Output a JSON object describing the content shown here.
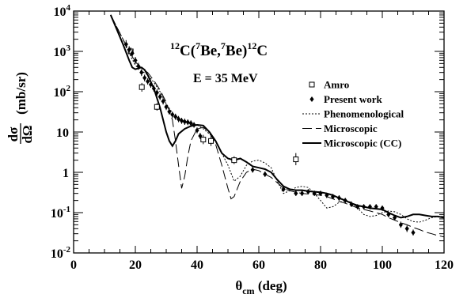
{
  "chart_data": {
    "type": "scatter",
    "title": "",
    "annotations": {
      "reaction": {
        "pre": "12",
        "a": "C(",
        "pre2": "7",
        "b": "Be,",
        "pre3": "7",
        "c": "Be)",
        "pre4": "12",
        "d": "C"
      },
      "energy": "E = 35 MeV"
    },
    "xlabel": {
      "main": "θ",
      "sub": "cm",
      "rest": " (deg)"
    },
    "ylabel": {
      "num": "dσ",
      "den": "dΩ",
      "unit": "(mb/sr)"
    },
    "xlim": [
      0,
      120
    ],
    "ylim": [
      0.01,
      10000
    ],
    "yscale": "log",
    "x_ticks": [
      0,
      20,
      40,
      60,
      80,
      100,
      120
    ],
    "x_tick_labels": [
      "0",
      "20",
      "40",
      "60",
      "80",
      "100",
      "120"
    ],
    "y_ticks": [
      0.01,
      0.1,
      1,
      10,
      100,
      1000,
      10000
    ],
    "y_tick_labels": [
      {
        "base": "10",
        "exp": "-2"
      },
      {
        "base": "10",
        "exp": "-1"
      },
      {
        "base": "1",
        "exp": ""
      },
      {
        "base": "10",
        "exp": ""
      },
      {
        "base": "10",
        "exp": "2"
      },
      {
        "base": "10",
        "exp": "3"
      },
      {
        "base": "10",
        "exp": "4"
      }
    ],
    "legend_position": "right",
    "series": [
      {
        "name": "Amro",
        "kind": "open-square",
        "points": [
          [
            18.5,
            1000,
            1250,
            800
          ],
          [
            22.1,
            130,
            165,
            100
          ],
          [
            27,
            42,
            52,
            34
          ],
          [
            42,
            6.5,
            8.5,
            5
          ],
          [
            44.5,
            6,
            8,
            4.5
          ],
          [
            52,
            2.0,
            2.5,
            1.6
          ],
          [
            72,
            2.1,
            3.0,
            1.5
          ]
        ]
      },
      {
        "name": "Present work",
        "kind": "filled-diamond",
        "points": [
          [
            17,
            1500,
            1900,
            1200
          ],
          [
            18,
            1100,
            1350,
            880
          ],
          [
            19,
            900,
            1100,
            720
          ],
          [
            20,
            600,
            730,
            490
          ],
          [
            21,
            430,
            520,
            350
          ],
          [
            22,
            300,
            360,
            245
          ],
          [
            23,
            220,
            265,
            180
          ],
          [
            24,
            180,
            215,
            150
          ],
          [
            25,
            150,
            180,
            125
          ],
          [
            26,
            120,
            144,
            100
          ],
          [
            27,
            95,
            114,
            79
          ],
          [
            28,
            75,
            90,
            62
          ],
          [
            29,
            58,
            70,
            48
          ],
          [
            30,
            42,
            50,
            35
          ],
          [
            31,
            32,
            38,
            27
          ],
          [
            32,
            27,
            32,
            22.5
          ],
          [
            33,
            24,
            28.5,
            20
          ],
          [
            34,
            21,
            25,
            17.5
          ],
          [
            35,
            19,
            22.5,
            16
          ],
          [
            36,
            18,
            21.5,
            15
          ],
          [
            37,
            17.5,
            20.5,
            14.8
          ],
          [
            38,
            16.5,
            19.5,
            14
          ],
          [
            39,
            15,
            17.5,
            12.8
          ],
          [
            40,
            11,
            13,
            9.3
          ],
          [
            41,
            8,
            9.5,
            6.7
          ],
          [
            58,
            1.15,
            1.35,
            0.98
          ],
          [
            62,
            0.9,
            1.05,
            0.77
          ],
          [
            68,
            0.38,
            0.44,
            0.33
          ],
          [
            72,
            0.3,
            0.35,
            0.26
          ],
          [
            74,
            0.3,
            0.35,
            0.26
          ],
          [
            76,
            0.33,
            0.38,
            0.29
          ],
          [
            78,
            0.3,
            0.35,
            0.26
          ],
          [
            80,
            0.3,
            0.35,
            0.26
          ],
          [
            82,
            0.27,
            0.31,
            0.23
          ],
          [
            84,
            0.25,
            0.29,
            0.22
          ],
          [
            86,
            0.23,
            0.27,
            0.2
          ],
          [
            88,
            0.2,
            0.23,
            0.17
          ],
          [
            90,
            0.16,
            0.19,
            0.14
          ],
          [
            92,
            0.14,
            0.16,
            0.12
          ],
          [
            94,
            0.14,
            0.16,
            0.12
          ],
          [
            96,
            0.14,
            0.16,
            0.12
          ],
          [
            98,
            0.14,
            0.16,
            0.12
          ],
          [
            100,
            0.13,
            0.15,
            0.11
          ],
          [
            102,
            0.09,
            0.105,
            0.077
          ],
          [
            104,
            0.075,
            0.088,
            0.064
          ],
          [
            106,
            0.05,
            0.06,
            0.042
          ],
          [
            108,
            0.04,
            0.048,
            0.033
          ],
          [
            110,
            0.032,
            0.038,
            0.027
          ]
        ]
      },
      {
        "name": "Phenomenological",
        "kind": "line",
        "dash": "dotted",
        "points": [
          [
            12,
            8000
          ],
          [
            14,
            4000
          ],
          [
            16,
            2000
          ],
          [
            18,
            900
          ],
          [
            20,
            450
          ],
          [
            22,
            330
          ],
          [
            24,
            260
          ],
          [
            26,
            170
          ],
          [
            28,
            100
          ],
          [
            30,
            50
          ],
          [
            32,
            30
          ],
          [
            34,
            22
          ],
          [
            36,
            18
          ],
          [
            38,
            16
          ],
          [
            40,
            15
          ],
          [
            42,
            12
          ],
          [
            44,
            9
          ],
          [
            46,
            6
          ],
          [
            48,
            3
          ],
          [
            50,
            1.5
          ],
          [
            52,
            0.6
          ],
          [
            54,
            0.8
          ],
          [
            56,
            1.5
          ],
          [
            58,
            1.9
          ],
          [
            60,
            2.0
          ],
          [
            62,
            1.7
          ],
          [
            64,
            1.3
          ],
          [
            66,
            0.6
          ],
          [
            68,
            0.3
          ],
          [
            70,
            0.35
          ],
          [
            72,
            0.42
          ],
          [
            74,
            0.45
          ],
          [
            76,
            0.42
          ],
          [
            78,
            0.3
          ],
          [
            80,
            0.2
          ],
          [
            82,
            0.13
          ],
          [
            84,
            0.14
          ],
          [
            86,
            0.18
          ],
          [
            88,
            0.2
          ],
          [
            90,
            0.18
          ],
          [
            92,
            0.13
          ],
          [
            94,
            0.09
          ],
          [
            96,
            0.08
          ],
          [
            98,
            0.085
          ],
          [
            100,
            0.1
          ],
          [
            102,
            0.11
          ],
          [
            104,
            0.105
          ],
          [
            106,
            0.09
          ],
          [
            108,
            0.07
          ],
          [
            110,
            0.06
          ],
          [
            112,
            0.058
          ],
          [
            114,
            0.065
          ],
          [
            116,
            0.075
          ],
          [
            118,
            0.08
          ],
          [
            120,
            0.08
          ]
        ]
      },
      {
        "name": "Microscopic",
        "kind": "line",
        "dash": "long-dash",
        "points": [
          [
            12,
            8000
          ],
          [
            14,
            4000
          ],
          [
            16,
            2000
          ],
          [
            18,
            1000
          ],
          [
            20,
            550
          ],
          [
            22,
            380
          ],
          [
            24,
            300
          ],
          [
            26,
            190
          ],
          [
            28,
            110
          ],
          [
            30,
            55
          ],
          [
            32,
            20
          ],
          [
            33,
            6
          ],
          [
            34,
            1.5
          ],
          [
            35,
            0.4
          ],
          [
            36,
            0.8
          ],
          [
            37,
            2.5
          ],
          [
            38,
            6
          ],
          [
            40,
            12
          ],
          [
            42,
            13
          ],
          [
            44,
            10
          ],
          [
            46,
            5
          ],
          [
            48,
            1.5
          ],
          [
            50,
            0.4
          ],
          [
            51,
            0.22
          ],
          [
            52,
            0.25
          ],
          [
            54,
            0.6
          ],
          [
            56,
            1.0
          ],
          [
            58,
            1.2
          ],
          [
            60,
            1.1
          ],
          [
            62,
            0.9
          ],
          [
            64,
            0.75
          ],
          [
            66,
            0.55
          ],
          [
            68,
            0.4
          ],
          [
            70,
            0.35
          ],
          [
            72,
            0.32
          ],
          [
            74,
            0.3
          ],
          [
            76,
            0.29
          ],
          [
            78,
            0.28
          ],
          [
            80,
            0.27
          ],
          [
            82,
            0.25
          ],
          [
            84,
            0.22
          ],
          [
            86,
            0.19
          ],
          [
            88,
            0.17
          ],
          [
            90,
            0.15
          ],
          [
            92,
            0.13
          ],
          [
            94,
            0.12
          ],
          [
            96,
            0.11
          ],
          [
            98,
            0.1
          ],
          [
            100,
            0.09
          ],
          [
            102,
            0.075
          ],
          [
            104,
            0.065
          ],
          [
            106,
            0.056
          ],
          [
            108,
            0.05
          ],
          [
            110,
            0.043
          ],
          [
            112,
            0.038
          ],
          [
            114,
            0.033
          ],
          [
            116,
            0.03
          ],
          [
            118,
            0.027
          ],
          [
            120,
            0.025
          ]
        ]
      },
      {
        "name": "Microscopic (CC)",
        "kind": "line",
        "dash": "solid",
        "points": [
          [
            12,
            8000
          ],
          [
            14,
            3500
          ],
          [
            16,
            1500
          ],
          [
            18,
            600
          ],
          [
            19,
            400
          ],
          [
            20,
            360
          ],
          [
            21,
            380
          ],
          [
            22,
            400
          ],
          [
            23,
            350
          ],
          [
            24,
            260
          ],
          [
            26,
            120
          ],
          [
            28,
            40
          ],
          [
            30,
            10
          ],
          [
            31,
            6
          ],
          [
            32,
            4.5
          ],
          [
            33,
            6
          ],
          [
            34,
            9
          ],
          [
            36,
            12
          ],
          [
            38,
            14
          ],
          [
            40,
            15
          ],
          [
            42,
            14.5
          ],
          [
            44,
            10
          ],
          [
            46,
            6
          ],
          [
            48,
            3
          ],
          [
            50,
            2.2
          ],
          [
            52,
            2.0
          ],
          [
            54,
            2.2
          ],
          [
            56,
            1.8
          ],
          [
            58,
            1.4
          ],
          [
            60,
            1.3
          ],
          [
            62,
            1.2
          ],
          [
            64,
            1.0
          ],
          [
            66,
            0.65
          ],
          [
            68,
            0.45
          ],
          [
            70,
            0.38
          ],
          [
            72,
            0.36
          ],
          [
            74,
            0.36
          ],
          [
            76,
            0.34
          ],
          [
            78,
            0.33
          ],
          [
            80,
            0.32
          ],
          [
            82,
            0.3
          ],
          [
            84,
            0.27
          ],
          [
            86,
            0.23
          ],
          [
            88,
            0.2
          ],
          [
            90,
            0.17
          ],
          [
            92,
            0.15
          ],
          [
            94,
            0.14
          ],
          [
            96,
            0.13
          ],
          [
            98,
            0.125
          ],
          [
            100,
            0.12
          ],
          [
            102,
            0.1
          ],
          [
            104,
            0.085
          ],
          [
            106,
            0.075
          ],
          [
            108,
            0.08
          ],
          [
            110,
            0.09
          ],
          [
            112,
            0.09
          ],
          [
            114,
            0.085
          ],
          [
            116,
            0.08
          ],
          [
            118,
            0.08
          ],
          [
            120,
            0.075
          ]
        ]
      }
    ]
  }
}
